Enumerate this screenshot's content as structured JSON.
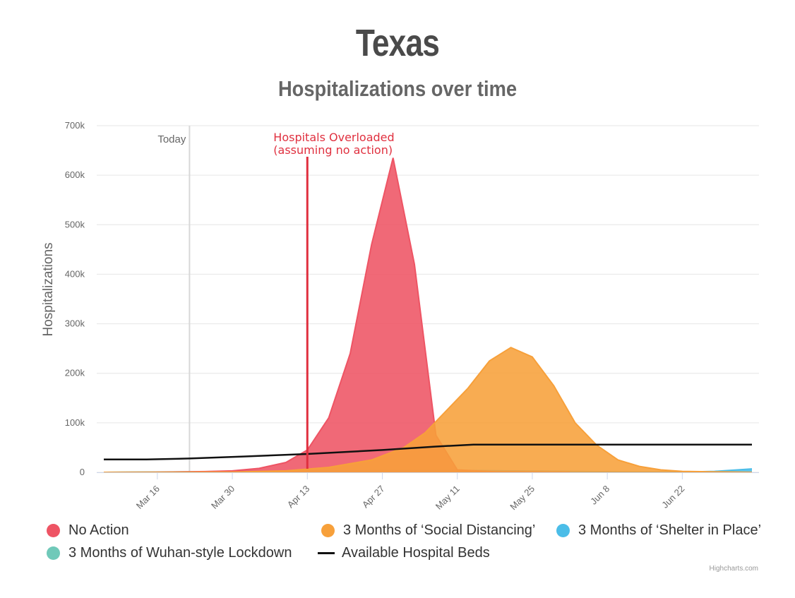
{
  "title": "Texas",
  "subtitle": "Hospitalizations over time",
  "credits": "Highcharts.com",
  "chart_data": {
    "type": "area",
    "ylabel": "Hospitalizations",
    "ylim": [
      0,
      700000
    ],
    "yticks": [
      0,
      100000,
      200000,
      300000,
      400000,
      500000,
      600000,
      700000
    ],
    "ytick_labels": [
      "0",
      "100k",
      "200k",
      "300k",
      "400k",
      "500k",
      "600k",
      "700k"
    ],
    "x_range": [
      "2020-03-06",
      "2020-07-05"
    ],
    "xticks": [
      "2020-03-16",
      "2020-03-30",
      "2020-04-13",
      "2020-04-27",
      "2020-05-11",
      "2020-05-25",
      "2020-06-08",
      "2020-06-22"
    ],
    "xtick_labels": [
      "Mar 16",
      "Mar 30",
      "Apr 13",
      "Apr 27",
      "May 11",
      "May 25",
      "Jun 8",
      "Jun 22"
    ],
    "grid": true,
    "legend_position": "bottom",
    "plot_lines": [
      {
        "label": "Today",
        "x": "2020-03-22",
        "color": "#d8d8d8"
      },
      {
        "label": "Hospitals Overloaded\n(assuming no action)",
        "x": "2020-04-13",
        "color": "#e0303f"
      }
    ],
    "series": [
      {
        "name": "No Action",
        "kind": "area",
        "color": "#ee5464",
        "points": [
          [
            "2020-03-06",
            0
          ],
          [
            "2020-03-15",
            200
          ],
          [
            "2020-03-25",
            1500
          ],
          [
            "2020-03-30",
            3000
          ],
          [
            "2020-04-04",
            8000
          ],
          [
            "2020-04-09",
            20000
          ],
          [
            "2020-04-13",
            45000
          ],
          [
            "2020-04-17",
            110000
          ],
          [
            "2020-04-21",
            240000
          ],
          [
            "2020-04-25",
            460000
          ],
          [
            "2020-04-29",
            635000
          ],
          [
            "2020-05-03",
            420000
          ],
          [
            "2020-05-07",
            75000
          ],
          [
            "2020-05-11",
            5000
          ],
          [
            "2020-05-18",
            1000
          ],
          [
            "2020-06-01",
            0
          ]
        ]
      },
      {
        "name": "3 Months of ‘Social Distancing’",
        "kind": "area",
        "color": "#f7a03a",
        "points": [
          [
            "2020-03-06",
            0
          ],
          [
            "2020-03-30",
            500
          ],
          [
            "2020-04-09",
            3000
          ],
          [
            "2020-04-17",
            10000
          ],
          [
            "2020-04-25",
            25000
          ],
          [
            "2020-05-01",
            50000
          ],
          [
            "2020-05-05",
            80000
          ],
          [
            "2020-05-09",
            125000
          ],
          [
            "2020-05-13",
            170000
          ],
          [
            "2020-05-17",
            225000
          ],
          [
            "2020-05-21",
            252000
          ],
          [
            "2020-05-25",
            233000
          ],
          [
            "2020-05-29",
            175000
          ],
          [
            "2020-06-02",
            100000
          ],
          [
            "2020-06-06",
            55000
          ],
          [
            "2020-06-10",
            25000
          ],
          [
            "2020-06-14",
            12000
          ],
          [
            "2020-06-18",
            5000
          ],
          [
            "2020-06-22",
            2000
          ],
          [
            "2020-07-05",
            0
          ]
        ]
      },
      {
        "name": "3 Months of ‘Shelter in Place’",
        "kind": "area",
        "color": "#4bbde8",
        "points": [
          [
            "2020-03-06",
            0
          ],
          [
            "2020-04-01",
            2000
          ],
          [
            "2020-04-21",
            3500
          ],
          [
            "2020-05-11",
            4000
          ],
          [
            "2020-05-25",
            2500
          ],
          [
            "2020-06-10",
            1000
          ],
          [
            "2020-06-22",
            500
          ],
          [
            "2020-06-28",
            2000
          ],
          [
            "2020-07-05",
            7000
          ]
        ]
      },
      {
        "name": "3 Months of Wuhan-style Lockdown",
        "kind": "area",
        "color": "#70c9b9",
        "points": [
          [
            "2020-03-06",
            0
          ],
          [
            "2020-04-06",
            1000
          ],
          [
            "2020-05-04",
            1500
          ],
          [
            "2020-06-01",
            800
          ],
          [
            "2020-07-05",
            300
          ]
        ]
      },
      {
        "name": "Available Hospital Beds",
        "kind": "line",
        "color": "#111111",
        "points": [
          [
            "2020-03-06",
            26000
          ],
          [
            "2020-03-14",
            26000
          ],
          [
            "2020-03-22",
            28000
          ],
          [
            "2020-04-01",
            32000
          ],
          [
            "2020-04-13",
            37000
          ],
          [
            "2020-04-27",
            45000
          ],
          [
            "2020-05-07",
            52000
          ],
          [
            "2020-05-14",
            56000
          ],
          [
            "2020-07-05",
            56000
          ]
        ]
      }
    ]
  }
}
